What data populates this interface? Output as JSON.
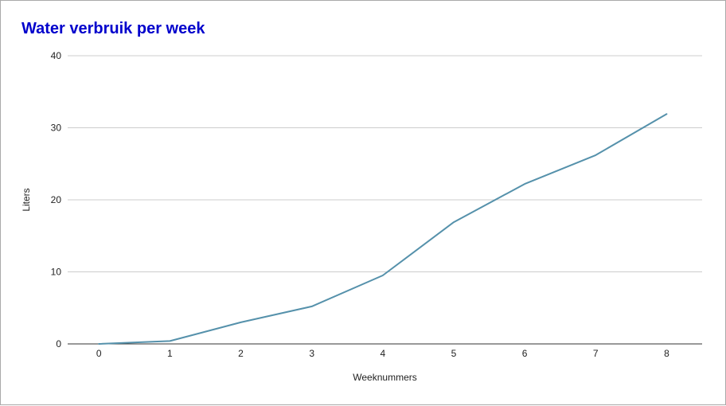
{
  "chart_data": {
    "type": "line",
    "title": "Water verbruik per week",
    "xlabel": "Weeknummers",
    "ylabel": "Liters",
    "x": [
      0,
      1,
      2,
      3,
      4,
      5,
      6,
      7,
      8
    ],
    "series": [
      {
        "values": [
          0,
          0.4,
          3.0,
          5.2,
          9.5,
          16.9,
          22.2,
          26.2,
          31.9
        ]
      }
    ],
    "xlim": [
      -0.44,
      8.5
    ],
    "ylim": [
      0,
      40
    ],
    "xticks": [
      "0",
      "1",
      "2",
      "3",
      "4",
      "5",
      "6",
      "7",
      "8"
    ],
    "yticks": [
      "0",
      "10",
      "20",
      "30",
      "40"
    ],
    "grid": true,
    "legend": "none",
    "colors": {
      "line": "#5591ab",
      "title": "#0000cc",
      "grid": "#cccccc",
      "axis": "#333333"
    }
  }
}
